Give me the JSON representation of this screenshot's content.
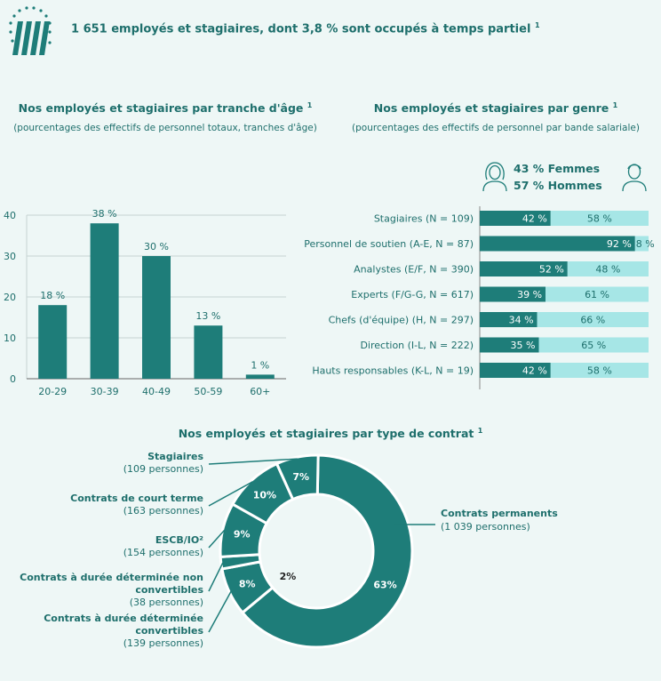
{
  "header": {
    "text": "1 651 employés et stagiaires, dont 3,8 %  sont occupés à temps partiel",
    "footnote": "1"
  },
  "colors": {
    "dark": "#1e7d79",
    "light": "#a6e6e6",
    "text": "#1e6f6c",
    "bg": "#eef7f6"
  },
  "icons": {
    "logo": "ecb-logo-icon",
    "female": "woman-icon",
    "male": "man-icon"
  },
  "chart_data": [
    {
      "type": "bar",
      "title": "Nos employés et stagiaires par tranche d'âge",
      "title_sup": "1",
      "subtitle": "(pourcentages des effectifs de personnel totaux, tranches d'âge)",
      "categories": [
        "20-29",
        "30-39",
        "40-49",
        "50-59",
        "60+"
      ],
      "values": [
        18,
        38,
        30,
        13,
        1
      ],
      "labels": [
        "18 %",
        "38 %",
        "30 %",
        "13 %",
        "1 %"
      ],
      "yticks": [
        0,
        10,
        20,
        30,
        40
      ],
      "ylim": [
        0,
        40
      ],
      "grid": true
    },
    {
      "type": "bar",
      "stacked": true,
      "orientation": "horizontal",
      "title": "Nos employés et stagiaires par genre",
      "title_sup": "1",
      "subtitle": "(pourcentages des effectifs de personnel par bande salariale)",
      "legend": [
        "43 %  Femmes",
        "57 %  Hommes"
      ],
      "categories": [
        "Stagiaires (N = 109)",
        "Personnel de soutien (A-E, N = 87)",
        "Analystes (E/F, N = 390)",
        "Experts (F/G-G, N = 617)",
        "Chefs (d'équipe) (H, N = 297)",
        "Direction (I-L, N = 222)",
        "Hauts responsables (K-L, N = 19)"
      ],
      "series": [
        {
          "name": "Femmes",
          "values": [
            42,
            92,
            52,
            39,
            34,
            35,
            42
          ],
          "labels": [
            "42 %",
            "92 %",
            "52 %",
            "39 %",
            "34 %",
            "35 %",
            "42 %"
          ]
        },
        {
          "name": "Hommes",
          "values": [
            58,
            8,
            48,
            61,
            66,
            65,
            58
          ],
          "labels": [
            "58 %",
            "8 %",
            "48 %",
            "61 %",
            "66 %",
            "65 %",
            "58 %"
          ]
        }
      ]
    },
    {
      "type": "pie",
      "title": "Nos employés et stagiaires par type de contrat",
      "title_sup": "1",
      "categories": [
        "Contrats permanents",
        "Stagiaires",
        "Contrats de court terme",
        "ESCB/IO²",
        "Contrats à durée déterminée non convertibles",
        "Contrats à durée déterminée convertibles"
      ],
      "values": [
        63,
        7,
        10,
        9,
        2,
        8
      ],
      "counts": [
        "(1 039 personnes)",
        "(109 personnes)",
        "(163 personnes)",
        "(154 personnes)",
        "(38 personnes)",
        "(139 personnes)"
      ],
      "labels": [
        "63%",
        "7%",
        "10%",
        "9%",
        "2%",
        "8%"
      ]
    }
  ]
}
